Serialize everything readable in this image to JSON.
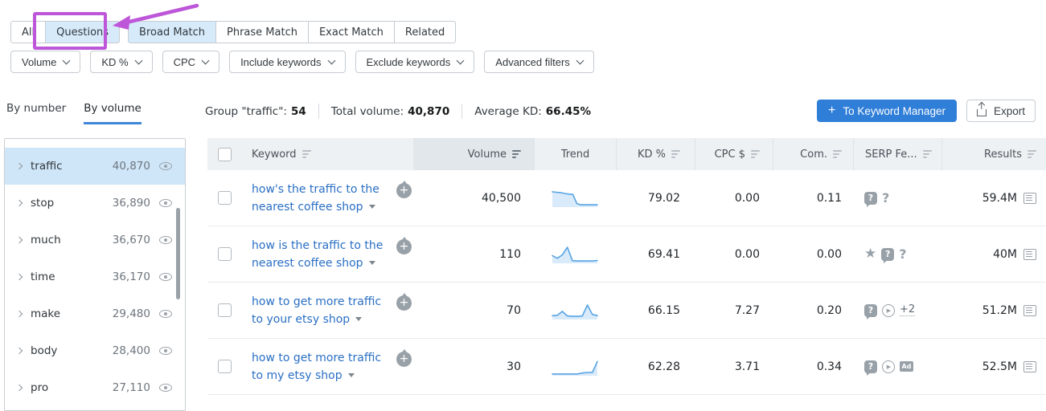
{
  "tabs": [
    {
      "label": "All",
      "active": false
    },
    {
      "label": "Questions",
      "active": true,
      "highlighted": true
    },
    {
      "label": "Broad Match",
      "active": true
    },
    {
      "label": "Phrase Match",
      "active": false
    },
    {
      "label": "Exact Match",
      "active": false
    },
    {
      "label": "Related",
      "active": false
    }
  ],
  "filters": [
    {
      "label": "Volume"
    },
    {
      "label": "KD %"
    },
    {
      "label": "CPC"
    },
    {
      "label": "Include keywords"
    },
    {
      "label": "Exclude keywords"
    },
    {
      "label": "Advanced filters"
    }
  ],
  "group_tabs": {
    "by_number": "By number",
    "by_volume": "By volume"
  },
  "stats": [
    {
      "label": "Group \"traffic\":",
      "value": "54"
    },
    {
      "label": "Total volume:",
      "value": "40,870"
    },
    {
      "label": "Average KD:",
      "value": "66.45%"
    }
  ],
  "actions": {
    "to_keyword_manager": "To Keyword Manager",
    "export": "Export",
    "plus": "+"
  },
  "sidebar": {
    "items": [
      {
        "label": "traffic",
        "volume": "40,870",
        "selected": true
      },
      {
        "label": "stop",
        "volume": "36,890",
        "selected": false
      },
      {
        "label": "much",
        "volume": "36,670",
        "selected": false
      },
      {
        "label": "time",
        "volume": "36,170",
        "selected": false
      },
      {
        "label": "make",
        "volume": "29,480",
        "selected": false
      },
      {
        "label": "body",
        "volume": "28,400",
        "selected": false
      },
      {
        "label": "pro",
        "volume": "27,110",
        "selected": false
      }
    ]
  },
  "table": {
    "columns": {
      "keyword": "Keyword",
      "volume": "Volume",
      "trend": "Trend",
      "kd": "KD %",
      "cpc": "CPC $",
      "com": "Com.",
      "serp": "SERP Fe...",
      "results": "Results"
    },
    "rows": [
      {
        "keyword_line1": "how's the traffic to the",
        "keyword_line2": "nearest coffee shop",
        "volume": "40,500",
        "kd": "79.02",
        "cpc": "0.00",
        "com": "0.11",
        "results": "59.4M",
        "serp": [
          {
            "type": "qa-bubble"
          },
          {
            "type": "question"
          }
        ],
        "trend": [
          0.95,
          0.92,
          0.9,
          0.84,
          0.8,
          0.78,
          0.18,
          0.1,
          0.1,
          0.1,
          0.1,
          0.1
        ]
      },
      {
        "keyword_line1": "how is the traffic to the",
        "keyword_line2": "nearest coffee shop",
        "volume": "110",
        "kd": "69.41",
        "cpc": "0.00",
        "com": "0.00",
        "results": "40M",
        "serp": [
          {
            "type": "star"
          },
          {
            "type": "qa-bubble"
          },
          {
            "type": "question"
          }
        ],
        "trend": [
          0.45,
          0.28,
          0.5,
          1.0,
          0.12,
          0.1,
          0.1,
          0.1,
          0.1,
          0.13
        ]
      },
      {
        "keyword_line1": "how to get more traffic",
        "keyword_line2": "to your etsy shop",
        "volume": "70",
        "kd": "66.15",
        "cpc": "7.27",
        "com": "0.20",
        "results": "51.2M",
        "serp": [
          {
            "type": "qa-bubble"
          },
          {
            "type": "video"
          },
          {
            "type": "plus-more",
            "label": "+2"
          }
        ],
        "trend": [
          0.2,
          0.22,
          0.48,
          0.18,
          0.15,
          0.15,
          0.18,
          0.9,
          0.28,
          0.2
        ]
      },
      {
        "keyword_line1": "how to get more traffic",
        "keyword_line2": "to my etsy shop",
        "volume": "30",
        "kd": "62.28",
        "cpc": "3.71",
        "com": "0.34",
        "results": "52.5M",
        "serp": [
          {
            "type": "qa-bubble"
          },
          {
            "type": "video"
          },
          {
            "type": "ad"
          }
        ],
        "trend": [
          0.06,
          0.06,
          0.06,
          0.06,
          0.06,
          0.06,
          0.12,
          0.16,
          0.16,
          0.88
        ]
      }
    ]
  },
  "colors": {
    "accent_blue": "#2f7ed8",
    "link_blue": "#2a6fc4",
    "tab_active_bg": "#d7eafa",
    "sidebar_selected_bg": "#cfe6f8",
    "annotation_purple": "#bd56d8",
    "spark_line": "#57a4e3",
    "spark_fill": "#d9eafb"
  }
}
